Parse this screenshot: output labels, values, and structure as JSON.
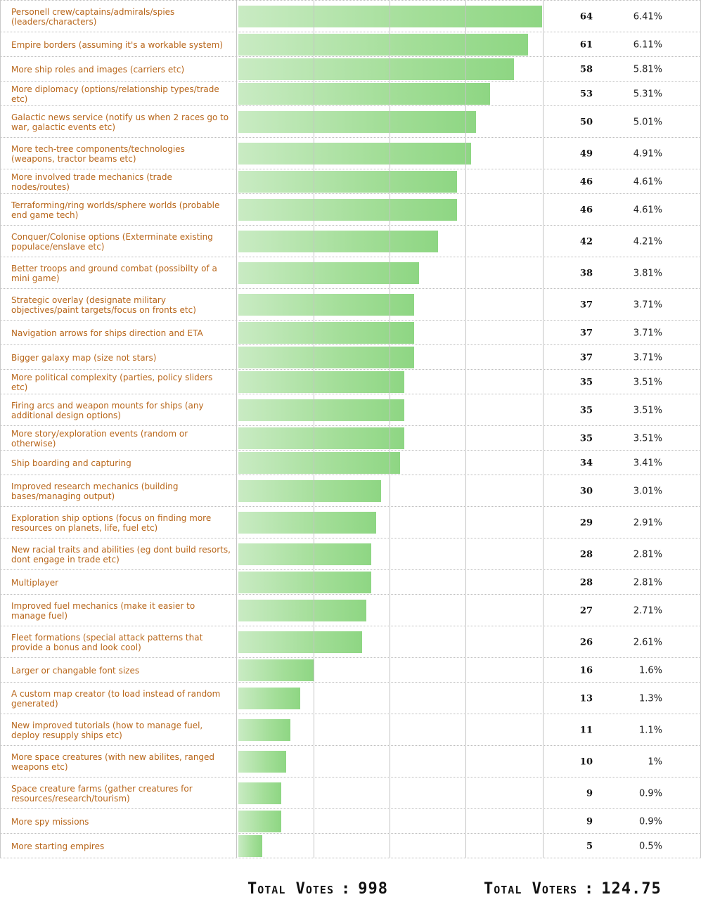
{
  "chart_data": {
    "type": "bar",
    "orientation": "horizontal",
    "categories": [
      "Personell crew/captains/admirals/spies (leaders/characters)",
      "Empire borders (assuming it's a workable system)",
      "More ship roles and images (carriers etc)",
      "More diplomacy (options/relationship types/trade etc)",
      "Galactic news service (notify us when 2 races go to war, galactic events etc)",
      "More tech-tree components/technologies (weapons, tractor beams etc)",
      "More involved trade mechanics (trade nodes/routes)",
      "Terraforming/ring worlds/sphere worlds (probable end game tech)",
      "Conquer/Colonise options (Exterminate existing populace/enslave etc)",
      "Better troops and ground combat (possibilty of a mini game)",
      "Strategic overlay (designate military objectives/paint targets/focus on fronts etc)",
      "Navigation arrows for ships direction and ETA",
      "Bigger galaxy map (size not stars)",
      "More political complexity (parties, policy sliders etc)",
      "Firing arcs and weapon mounts for ships (any additional design options)",
      "More story/exploration events (random or otherwise)",
      "Ship boarding and capturing",
      "Improved research mechanics (building bases/managing output)",
      "Exploration ship options (focus on finding more resources on planets, life, fuel etc)",
      "New racial traits and abilities (eg dont build resorts, dont engage in trade etc)",
      "Multiplayer",
      "Improved fuel mechanics (make it easier to manage fuel)",
      "Fleet formations (special attack patterns that provide a bonus and look cool)",
      "Larger or changable font sizes",
      "A custom map creator (to load instead of random generated)",
      "New improved tutorials (how to manage fuel, deploy resupply ships etc)",
      "More space creatures (with new abilites, ranged weapons etc)",
      "Space creature farms (gather creatures for resources/research/tourism)",
      "More spy missions",
      "More starting empires"
    ],
    "values": [
      64,
      61,
      58,
      53,
      50,
      49,
      46,
      46,
      42,
      38,
      37,
      37,
      37,
      35,
      35,
      35,
      34,
      30,
      29,
      28,
      28,
      27,
      26,
      16,
      13,
      11,
      10,
      9,
      9,
      5
    ],
    "percent_labels": [
      "6.41%",
      "6.11%",
      "5.81%",
      "5.31%",
      "5.01%",
      "4.91%",
      "4.61%",
      "4.61%",
      "4.21%",
      "3.81%",
      "3.71%",
      "3.71%",
      "3.71%",
      "3.51%",
      "3.51%",
      "3.51%",
      "3.41%",
      "3.01%",
      "2.91%",
      "2.81%",
      "2.81%",
      "2.71%",
      "2.61%",
      "1.6%",
      "1.3%",
      "1.1%",
      "1%",
      "0.9%",
      "0.9%",
      "0.5%"
    ],
    "xlim": [
      0,
      64
    ],
    "grid": true,
    "colors": {
      "bar_light": "#c9ebc3",
      "bar_dark": "#8ed683",
      "label": "#b8661a"
    }
  },
  "totals": {
    "votes_label": "Total Votes",
    "votes_value": "998",
    "voters_label": "Total Voters",
    "voters_value": "124.75",
    "separator": ":"
  }
}
